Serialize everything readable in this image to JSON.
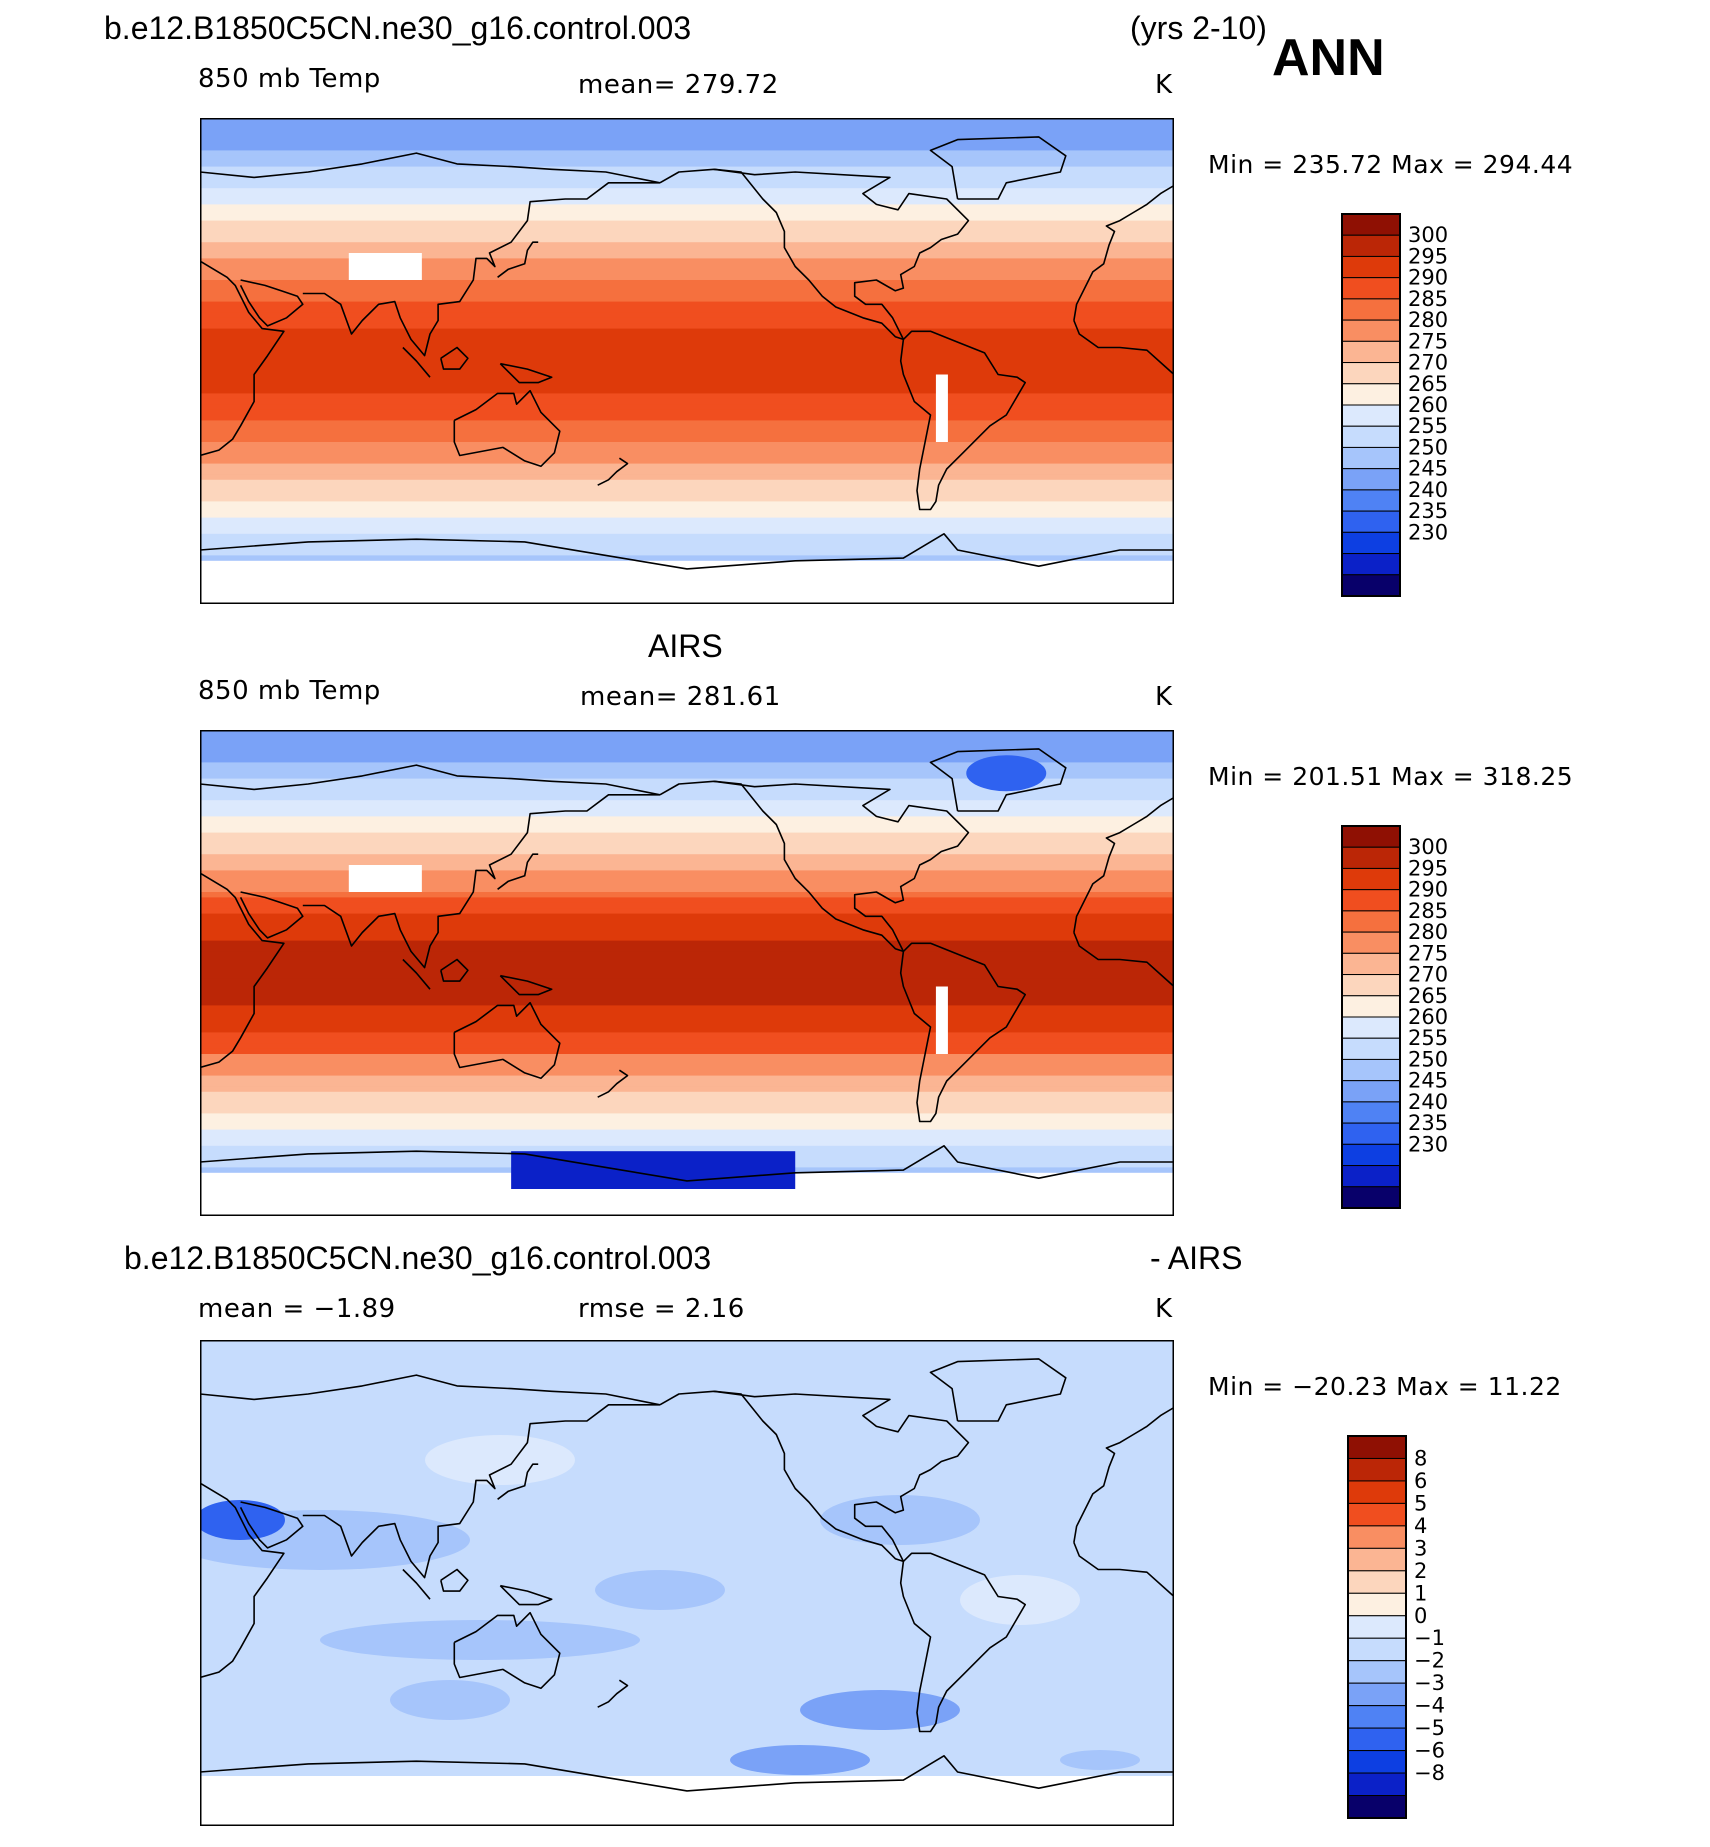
{
  "header": {
    "case_name": "b.e12.B1850C5CN.ne30_g16.control.003",
    "years": "(yrs 2-10)",
    "season": "ANN"
  },
  "colors": {
    "abs_scale": [
      "#08006a",
      "#0b21c8",
      "#0d3fe2",
      "#2f62f0",
      "#4f82f4",
      "#7aa2f7",
      "#a6c5fb",
      "#c6dcfd",
      "#dce9fd",
      "#fdf0e1",
      "#fcd6bd",
      "#fbb593",
      "#f98e62",
      "#f5703e",
      "#f04e1f",
      "#de3a0a",
      "#bb2606",
      "#8f1003"
    ],
    "diff_scale": [
      "#08006a",
      "#0b21c8",
      "#0d3fe2",
      "#2f62f0",
      "#4f82f4",
      "#7aa2f7",
      "#a6c5fb",
      "#c6dcfd",
      "#dce9fd",
      "#fdf0e1",
      "#fcd6bd",
      "#fbb593",
      "#f98e62",
      "#f04e1f",
      "#de3a0a",
      "#bb2606",
      "#8f1003"
    ]
  },
  "chart_data": [
    {
      "type": "heatmap",
      "title": "b.e12.B1850C5CN.ne30_g16.control.003",
      "variable": "850 mb Temp",
      "mean_text": "mean=  279.72",
      "units": "K",
      "minmax_text": "Min  =  235.72  Max  =  294.44",
      "colorbar_levels": [
        300,
        295,
        290,
        285,
        280,
        275,
        270,
        265,
        260,
        255,
        250,
        245,
        240,
        235,
        230
      ],
      "colorbar_labels": [
        "300",
        "295",
        "290",
        "285",
        "280",
        "275",
        "270",
        "265",
        "260",
        "255",
        "250",
        "245",
        "240",
        "235",
        "230"
      ]
    },
    {
      "type": "heatmap",
      "title": "AIRS",
      "variable": "850 mb Temp",
      "mean_text": "mean=  281.61",
      "units": "K",
      "minmax_text": "Min  =  201.51  Max  =  318.25",
      "colorbar_levels": [
        300,
        295,
        290,
        285,
        280,
        275,
        270,
        265,
        260,
        255,
        250,
        245,
        240,
        235,
        230
      ],
      "colorbar_labels": [
        "300",
        "295",
        "290",
        "285",
        "280",
        "275",
        "270",
        "265",
        "260",
        "255",
        "250",
        "245",
        "240",
        "235",
        "230"
      ]
    },
    {
      "type": "heatmap",
      "title": "b.e12.B1850C5CN.ne30_g16.control.003",
      "title_suffix": "- AIRS",
      "mean_text": "mean  =    −1.89",
      "rmse_text": "rmse  =     2.16",
      "units": "K",
      "minmax_text": "Min  =  −20.23  Max  =    11.22",
      "colorbar_levels": [
        8,
        6,
        5,
        4,
        3,
        2,
        1,
        0,
        -1,
        -2,
        -3,
        -4,
        -5,
        -6,
        -8
      ],
      "colorbar_labels": [
        "8",
        "6",
        "5",
        "4",
        "3",
        "2",
        "1",
        "0",
        "−1",
        "−2",
        "−3",
        "−4",
        "−5",
        "−6",
        "−8"
      ]
    }
  ]
}
